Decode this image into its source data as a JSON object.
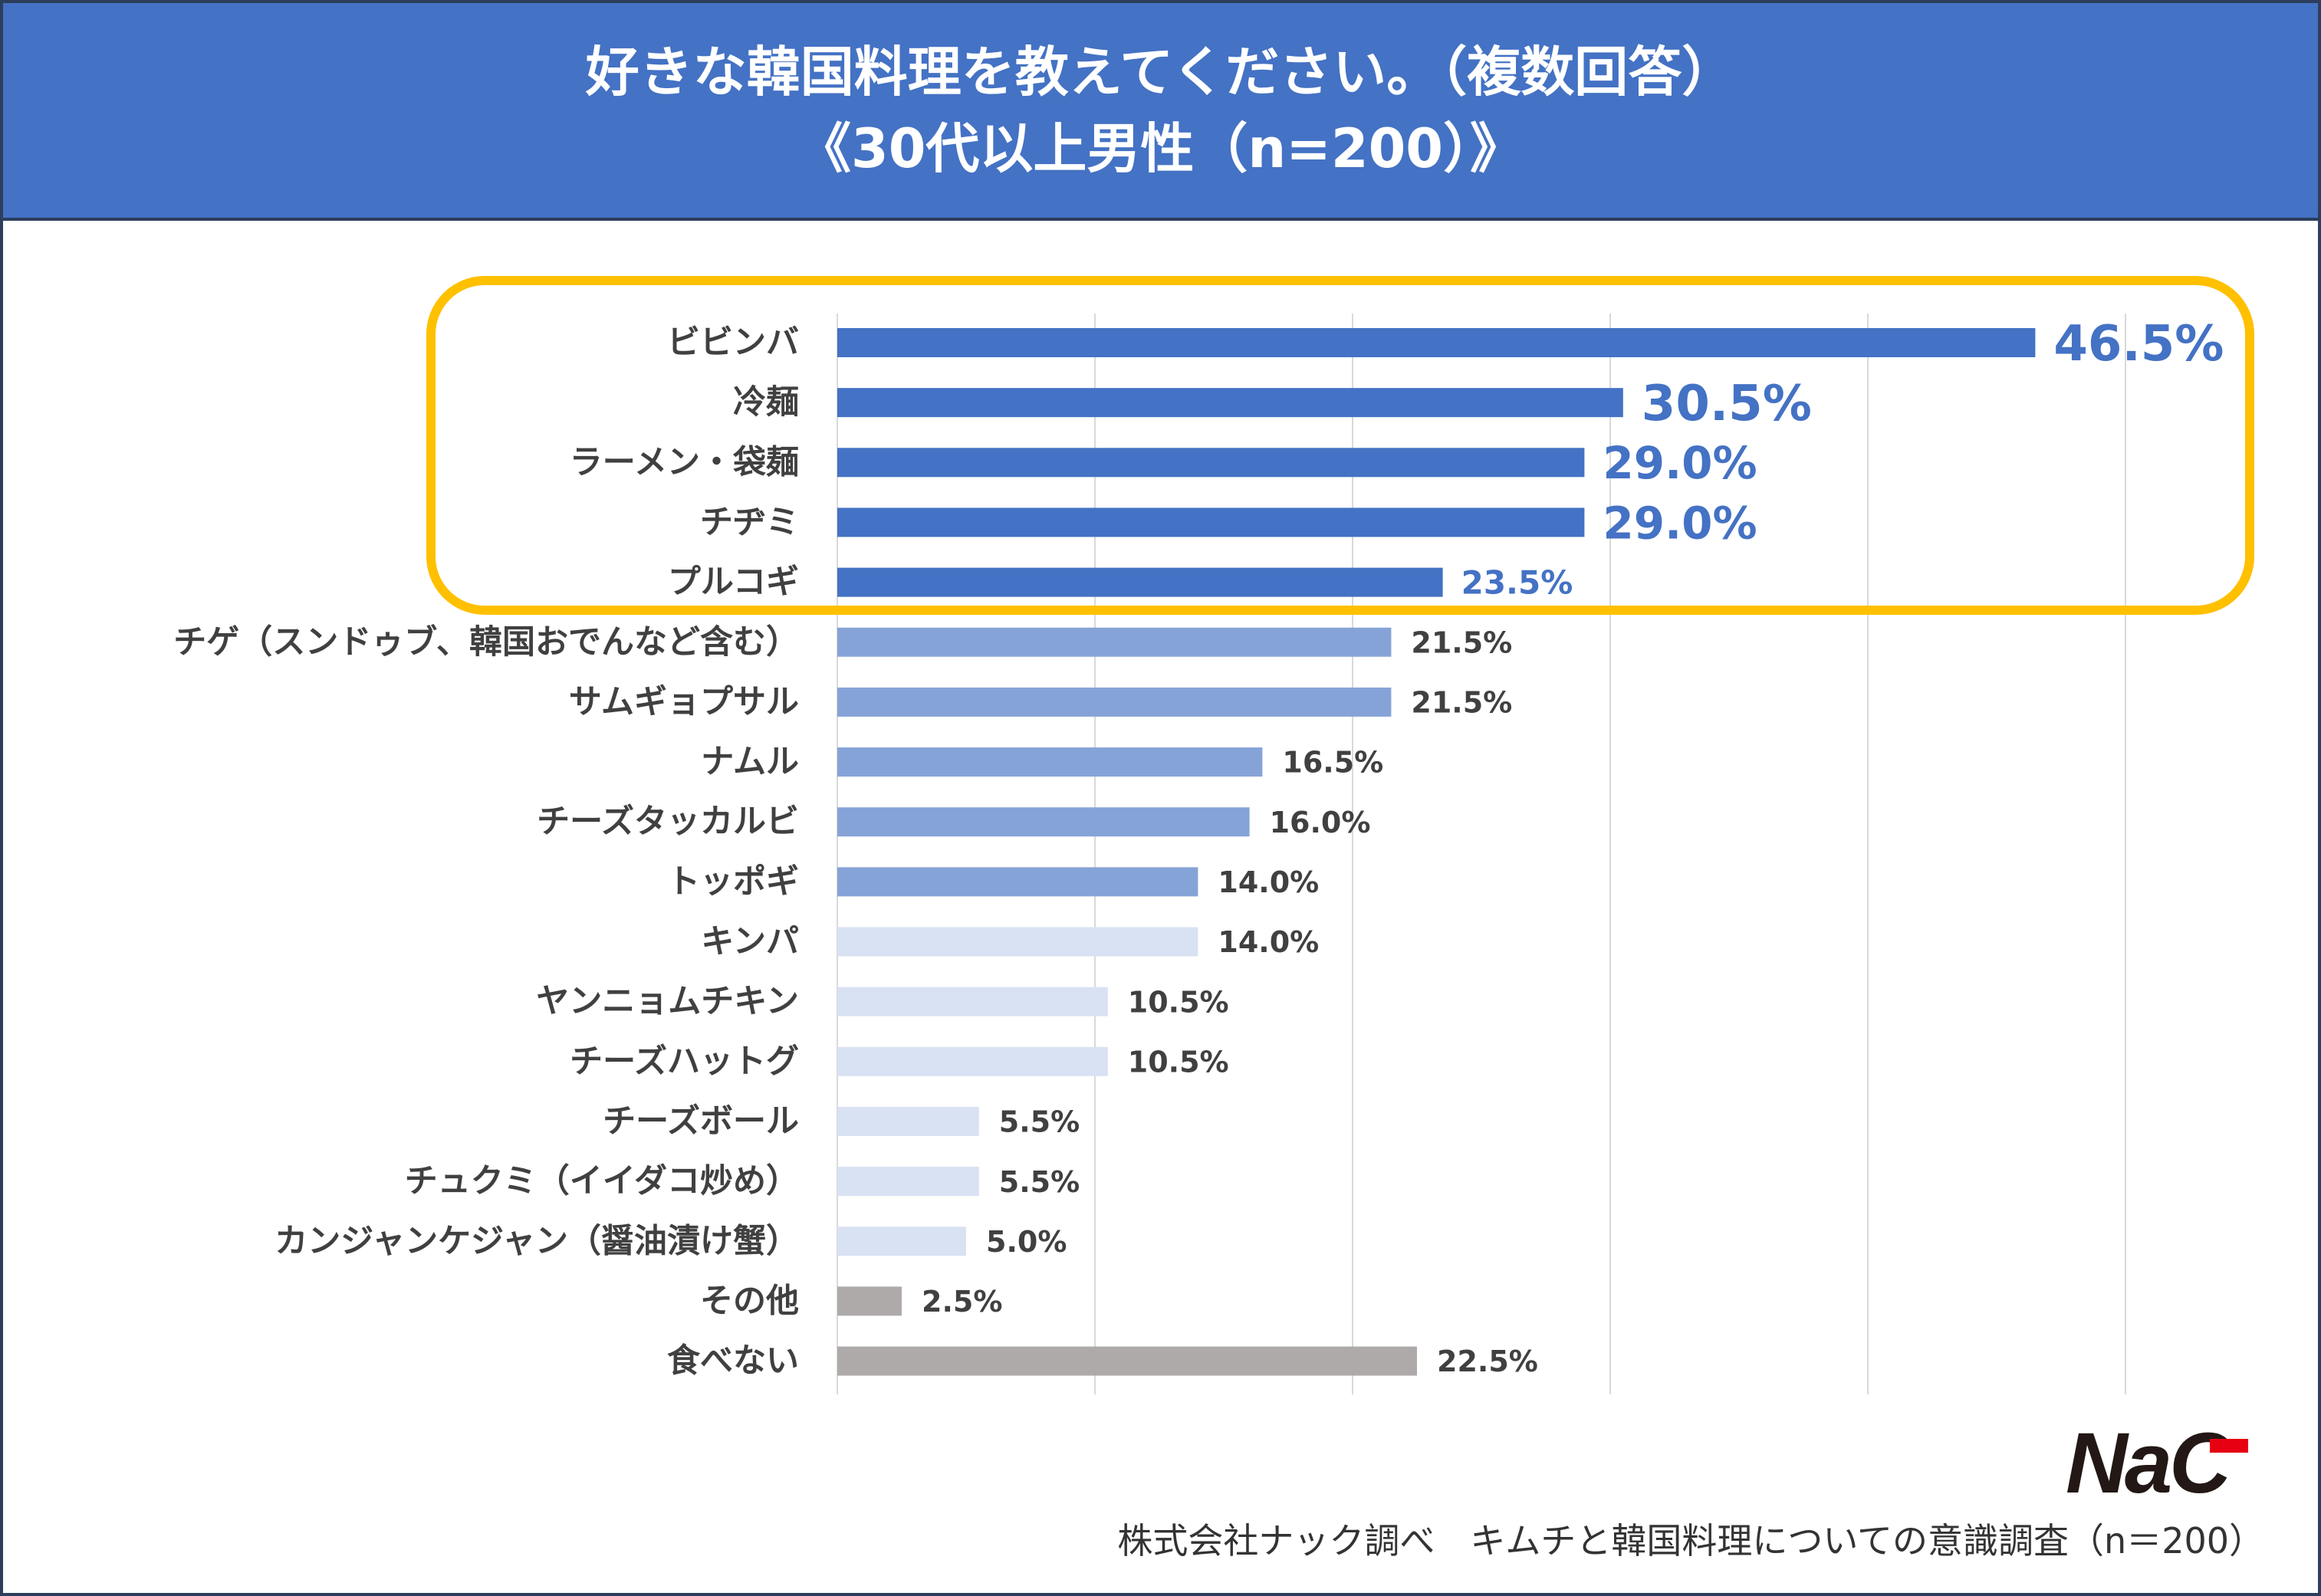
{
  "title": {
    "line1": "好きな韓国料理を教えてください。（複数回答）",
    "line2": "《30代以上男性（n=200）》"
  },
  "colors": {
    "title_bg": "#4472c4",
    "highlight_border": "#ffc000",
    "bar_top": "#4472c4",
    "bar_mid": "#86a3d8",
    "bar_low": "#d9e2f3",
    "bar_other": "#aeaaaa",
    "label_top": "#4472c4",
    "label_default": "#404040",
    "logo_dark": "#231815",
    "logo_red": "#e60012"
  },
  "chart_data": {
    "type": "bar",
    "orientation": "horizontal",
    "title": "好きな韓国料理を教えてください。（複数回答）《30代以上男性（n=200）》",
    "xlabel": "",
    "ylabel": "",
    "xlim": [
      0,
      50
    ],
    "grid": true,
    "unit": "%",
    "categories": [
      "ビビンバ",
      "冷麺",
      "ラーメン・袋麺",
      "チヂミ",
      "プルコギ",
      "チゲ（スンドゥブ、韓国おでんなど含む）",
      "サムギョプサル",
      "ナムル",
      "チーズタッカルビ",
      "トッポギ",
      "キンパ",
      "ヤンニョムチキン",
      "チーズハットグ",
      "チーズボール",
      "チュクミ（イイダコ炒め）",
      "カンジャンケジャン（醤油漬け蟹）",
      "その他",
      "食べない"
    ],
    "values": [
      46.5,
      30.5,
      29.0,
      29.0,
      23.5,
      21.5,
      21.5,
      16.5,
      16.0,
      14.0,
      14.0,
      10.5,
      10.5,
      5.5,
      5.5,
      5.0,
      2.5,
      22.5
    ],
    "value_labels": [
      "46.5%",
      "30.5%",
      "29.0%",
      "29.0%",
      "23.5%",
      "21.5%",
      "21.5%",
      "16.5%",
      "16.0%",
      "14.0%",
      "14.0%",
      "10.5%",
      "10.5%",
      "5.5%",
      "5.5%",
      "5.0%",
      "2.5%",
      "22.5%"
    ],
    "highlighted_top": 5
  },
  "footer": {
    "source": "株式会社ナック調べ　キムチと韓国料理についての意識調査（n＝200）",
    "logo": "NaC"
  }
}
